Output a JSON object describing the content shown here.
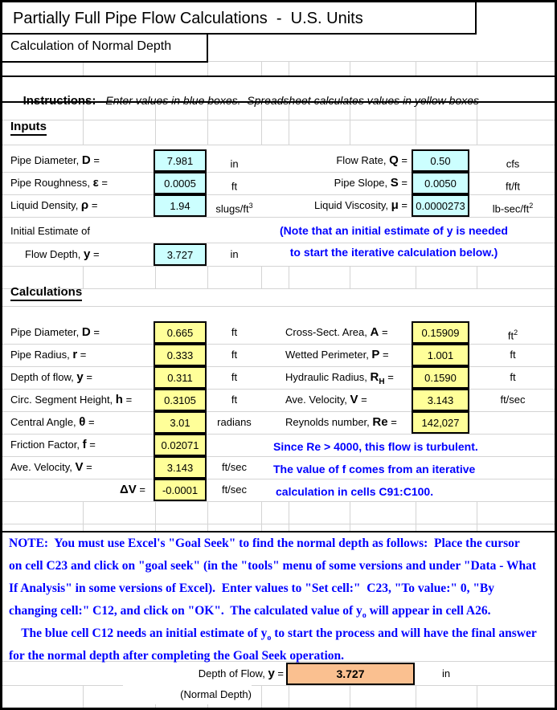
{
  "title": "Partially Full Pipe Flow Calculations  -  U.S. Units",
  "subtitle": "Calculation of Normal Depth",
  "instructions": {
    "label": "Instructions:",
    "text": "Enter values in blue boxes.  Spreadsheet calculates values in yellow boxes"
  },
  "sections": {
    "inputs_heading": "Inputs",
    "calculations_heading": "Calculations"
  },
  "colors": {
    "input_box": "#CCFFFF",
    "calculated_box": "#FFFF99",
    "result_box": "#FAC090",
    "note_text": "#0000FF"
  },
  "inputs_left": [
    {
      "pre": "Pipe Diameter, ",
      "var": "D",
      "post": " =",
      "value": "7.981",
      "unit": "in"
    },
    {
      "pre": "Pipe Roughness, ",
      "var": "ε",
      "post": " =",
      "value": "0.0005",
      "unit": "ft"
    },
    {
      "pre": "Liquid Density, ",
      "var": "ρ",
      "post": " =",
      "value": "1.94",
      "unit": "slugs/ft",
      "unit_sup": "3"
    }
  ],
  "inputs_right": [
    {
      "pre": "Flow Rate, ",
      "var": "Q",
      "post": " =",
      "value": "0.50",
      "unit": "cfs"
    },
    {
      "pre": "Pipe Slope, ",
      "var": "S",
      "post": " =",
      "value": "0.0050",
      "unit": "ft/ft"
    },
    {
      "pre": "Liquid Viscosity, ",
      "var": "μ",
      "post": " =",
      "value": "0.0000273",
      "unit": "lb-sec/ft",
      "unit_sup": "2"
    }
  ],
  "initial_estimate": {
    "line1": "Initial Estimate of",
    "pre": "Flow Depth, ",
    "var": "y",
    "post": " =",
    "value": "3.727",
    "unit": "in",
    "note_line1": "(Note that an initial estimate of y is needed",
    "note_line2": "to start the iterative calculation below.)"
  },
  "calc_left": [
    {
      "pre": "Pipe Diameter, ",
      "var": "D",
      "post": " =",
      "value": "0.665",
      "unit": "ft"
    },
    {
      "pre": "Pipe Radius, ",
      "var": "r",
      "post": " =",
      "value": "0.333",
      "unit": "ft"
    },
    {
      "pre": "Depth of flow, ",
      "var": "y",
      "post": " =",
      "value": "0.311",
      "unit": "ft"
    },
    {
      "pre": "Circ. Segment Height, ",
      "var": "h",
      "post": " =",
      "value": "0.3105",
      "unit": "ft"
    },
    {
      "pre": "Central Angle, ",
      "var": "θ",
      "post": " =",
      "value": "3.01",
      "unit": "radians"
    },
    {
      "pre": "Friction Factor, ",
      "var": "f",
      "post": " =",
      "value": "0.02071",
      "unit": ""
    },
    {
      "pre": "Ave. Velocity, ",
      "var": "V",
      "post": " =",
      "value": "3.143",
      "unit": "ft/sec"
    },
    {
      "pre": "",
      "var": "ΔV",
      "post": " =",
      "value": "-0.0001",
      "unit": "ft/sec"
    }
  ],
  "calc_right": [
    {
      "pre": "Cross-Sect. Area, ",
      "var": "A",
      "post": " =",
      "value": "0.15909",
      "unit": "ft",
      "unit_sup": "2"
    },
    {
      "pre": "Wetted Perimeter, ",
      "var": "P",
      "post": " =",
      "value": "1.001",
      "unit": "ft"
    },
    {
      "pre": "Hydraulic Radius, ",
      "var": "R",
      "var_sub": "H",
      "post": " =",
      "value": "0.1590",
      "unit": "ft"
    },
    {
      "pre": "Ave. Velocity, ",
      "var": "V",
      "post": " =",
      "value": "3.143",
      "unit": "ft/sec"
    },
    {
      "pre": "Reynolds number, ",
      "var": "Re",
      "post": " =",
      "value": "142,027",
      "unit": ""
    }
  ],
  "turbulent_note": [
    "Since Re > 4000, this flow is turbulent.",
    "The value of f comes from an iterative",
    "calculation in cells C91:C100."
  ],
  "note_paragraph": [
    {
      "a": "NOTE:  You must use Excel's \"Goal Seek\" to find the normal depth as follows:  Place the cursor"
    },
    {
      "a": "on cell C23 and click on \"goal seek\" (in the \"tools\" menu of some versions and under \"Data - What"
    },
    {
      "a": "If Analysis\" in some versions of Excel).  Enter values to \"Set cell:\"  C23, \"To value:\" 0, \"By"
    },
    {
      "a": "changing cell:\" C12, and click on \"OK\".  The calculated value of y",
      "sub": "o",
      "b": " will appear in cell A26."
    },
    {
      "a": "    The blue cell C12 needs an initial estimate of y",
      "sub": "o",
      "b": " to start the process and will have the final answer"
    },
    {
      "a": "for the normal depth after completing the Goal Seek operation."
    }
  ],
  "result": {
    "pre": "Depth of Flow, ",
    "var": "y",
    "post": " =",
    "sublabel": "(Normal Depth)",
    "value": "3.727",
    "unit": "in"
  }
}
